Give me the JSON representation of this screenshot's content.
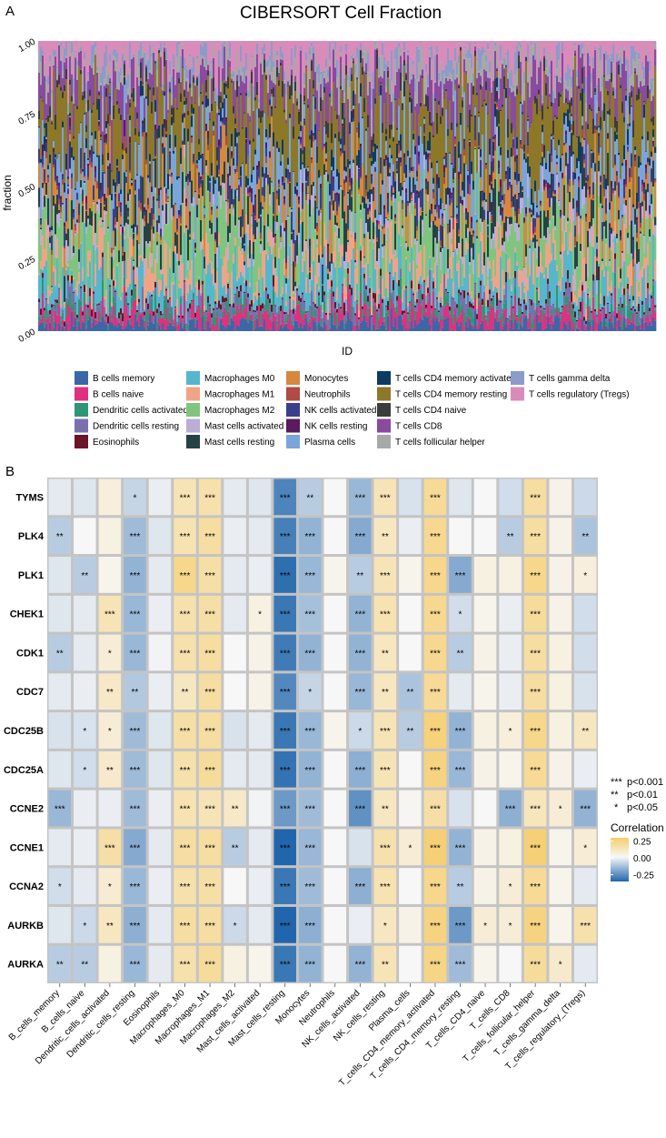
{
  "panel_labels": {
    "a": "A",
    "b": "B"
  },
  "stacked_note": "Stacked bar chart of immune cell fractions per sample; individual sample values are not legible in the image, so the displayed bars are an approximation of the overall composition.",
  "legend_columns": 5,
  "heatmap_legend": {
    "significance": [
      {
        "stars": "***",
        "label": "p<0.001"
      },
      {
        "stars": "**",
        "label": "p<0.01"
      },
      {
        "stars": "*",
        "label": "p<0.05"
      }
    ],
    "color_title": "Correlation",
    "ticks": [
      0.25,
      0.0,
      -0.25
    ],
    "tick_labels": [
      "0.25",
      "0.00",
      "-0.25"
    ],
    "low_color": "#2166ac",
    "mid_color": "#f7f7f7",
    "high_color": "#f6cd6b"
  },
  "chart_data": [
    {
      "type": "bar",
      "stacked": true,
      "title": "CIBERSORT Cell Fraction",
      "xlabel": "ID",
      "ylabel": "fraction",
      "ylim": [
        0,
        1
      ],
      "y_ticks": [
        0.0,
        0.25,
        0.5,
        0.75,
        1.0
      ],
      "y_tick_labels": [
        "0.00",
        "0.25",
        "0.50",
        "0.75",
        "1.00"
      ],
      "series": [
        {
          "name": "B cells memory",
          "color": "#3b67a8",
          "approx_mean_fraction": 0.02
        },
        {
          "name": "B cells naive",
          "color": "#e0307f",
          "approx_mean_fraction": 0.03
        },
        {
          "name": "Dendritic cells activated",
          "color": "#2e9676",
          "approx_mean_fraction": 0.02
        },
        {
          "name": "Dendritic cells resting",
          "color": "#7a70b0",
          "approx_mean_fraction": 0.02
        },
        {
          "name": "Eosinophils",
          "color": "#6b1528",
          "approx_mean_fraction": 0.01
        },
        {
          "name": "Macrophages M0",
          "color": "#56b7cc",
          "approx_mean_fraction": 0.07
        },
        {
          "name": "Macrophages M1",
          "color": "#f0a387",
          "approx_mean_fraction": 0.05
        },
        {
          "name": "Macrophages M2",
          "color": "#80c57f",
          "approx_mean_fraction": 0.1
        },
        {
          "name": "Mast cells activated",
          "color": "#bcadd5",
          "approx_mean_fraction": 0.03
        },
        {
          "name": "Mast cells resting",
          "color": "#254345",
          "approx_mean_fraction": 0.04
        },
        {
          "name": "Monocytes",
          "color": "#d4893f",
          "approx_mean_fraction": 0.06
        },
        {
          "name": "Neutrophils",
          "color": "#b24a45",
          "approx_mean_fraction": 0.01
        },
        {
          "name": "NK cells activated",
          "color": "#3a3e8b",
          "approx_mean_fraction": 0.03
        },
        {
          "name": "NK cells resting",
          "color": "#5a1a5e",
          "approx_mean_fraction": 0.01
        },
        {
          "name": "Plasma cells",
          "color": "#7aa5d8",
          "approx_mean_fraction": 0.08
        },
        {
          "name": "T cells CD4 memory activated",
          "color": "#0d3b62",
          "approx_mean_fraction": 0.02
        },
        {
          "name": "T cells CD4 memory resting",
          "color": "#8d7828",
          "approx_mean_fraction": 0.14
        },
        {
          "name": "T cells CD4 naive",
          "color": "#3c3c3c",
          "approx_mean_fraction": 0.02
        },
        {
          "name": "T cells CD8",
          "color": "#8a4aa0",
          "approx_mean_fraction": 0.07
        },
        {
          "name": "T cells follicular helper",
          "color": "#a8a8a8",
          "approx_mean_fraction": 0.04
        },
        {
          "name": "T cells gamma delta",
          "color": "#8b9cc8",
          "approx_mean_fraction": 0.03
        },
        {
          "name": "T cells regulatory (Tregs)",
          "color": "#d98bba",
          "approx_mean_fraction": 0.06
        }
      ]
    },
    {
      "type": "heatmap",
      "title": "",
      "xlabel": "",
      "ylabel": "",
      "value_range": [
        -0.35,
        0.3
      ],
      "rows": [
        "TYMS",
        "PLK4",
        "PLK1",
        "CHEK1",
        "CDK1",
        "CDC7",
        "CDC25B",
        "CDC25A",
        "CCNE2",
        "CCNE1",
        "CCNA2",
        "AURKB",
        "AURKA"
      ],
      "columns": [
        "B_cells_memory",
        "B_cells_naive",
        "Dendritic_cells_activated",
        "Dendritic_cells_resting",
        "Eosinophils",
        "Macrophages_M0",
        "Macrophages_M1",
        "Macrophages_M2",
        "Mast_cells_activated",
        "Mast_cells_resting",
        "Monocytes",
        "Neutrophils",
        "NK_cells_activated",
        "NK_cells_resting",
        "Plasma_cells",
        "T_cells_CD4_memory_activated",
        "T_cells_CD4_memory_resting",
        "T_cells_CD4_naive",
        "T_cells_CD8",
        "T_cells_follicular_helper",
        "T_cells_gamma_delta",
        "T_cells_regulatory_(Tregs)"
      ],
      "values": [
        [
          -0.03,
          -0.04,
          0.05,
          -0.08,
          -0.02,
          0.12,
          0.14,
          -0.03,
          -0.04,
          -0.27,
          -0.1,
          0.0,
          -0.15,
          0.12,
          -0.05,
          0.18,
          -0.04,
          0.0,
          -0.06,
          0.16,
          0.03,
          -0.07
        ],
        [
          -0.1,
          0.0,
          0.04,
          -0.14,
          -0.04,
          0.13,
          0.16,
          -0.02,
          -0.03,
          -0.28,
          -0.16,
          0.0,
          -0.18,
          0.1,
          -0.02,
          0.19,
          0.0,
          0.0,
          -0.1,
          0.16,
          0.03,
          -0.12
        ],
        [
          -0.04,
          -0.1,
          0.02,
          -0.16,
          -0.03,
          0.2,
          0.15,
          -0.03,
          -0.02,
          -0.32,
          -0.15,
          0.02,
          -0.1,
          0.12,
          0.02,
          0.2,
          -0.18,
          0.04,
          0.04,
          0.2,
          0.03,
          0.05
        ],
        [
          -0.04,
          -0.03,
          0.12,
          -0.15,
          -0.02,
          0.14,
          0.15,
          -0.03,
          0.04,
          -0.3,
          -0.13,
          0.0,
          -0.16,
          0.13,
          0.0,
          0.19,
          -0.06,
          0.02,
          -0.02,
          0.17,
          0.03,
          -0.06
        ],
        [
          -0.1,
          -0.03,
          0.06,
          -0.15,
          -0.01,
          0.14,
          0.16,
          0.0,
          0.03,
          -0.29,
          -0.16,
          0.0,
          -0.16,
          0.1,
          0.0,
          0.19,
          -0.1,
          0.03,
          -0.02,
          0.16,
          0.04,
          -0.06
        ],
        [
          -0.03,
          -0.02,
          0.09,
          -0.11,
          -0.02,
          0.1,
          0.16,
          0.0,
          0.03,
          -0.26,
          -0.08,
          0.0,
          -0.15,
          0.1,
          -0.12,
          0.18,
          -0.03,
          0.02,
          -0.02,
          0.16,
          0.04,
          -0.05
        ],
        [
          -0.05,
          -0.05,
          0.06,
          -0.14,
          -0.04,
          0.15,
          0.16,
          -0.05,
          -0.03,
          -0.3,
          -0.15,
          0.02,
          -0.07,
          0.12,
          -0.1,
          0.23,
          -0.16,
          0.04,
          0.05,
          0.2,
          0.04,
          0.1
        ],
        [
          -0.04,
          -0.06,
          0.08,
          -0.14,
          -0.04,
          0.14,
          0.17,
          -0.03,
          -0.03,
          -0.31,
          -0.16,
          0.0,
          -0.17,
          0.12,
          0.0,
          0.22,
          -0.15,
          0.03,
          0.02,
          0.18,
          0.03,
          -0.02
        ],
        [
          -0.15,
          -0.02,
          -0.02,
          -0.14,
          -0.02,
          0.13,
          0.12,
          0.09,
          -0.01,
          -0.22,
          -0.14,
          0.0,
          -0.24,
          0.1,
          0.01,
          0.15,
          -0.05,
          0.0,
          -0.17,
          0.11,
          0.06,
          -0.16
        ],
        [
          -0.03,
          -0.02,
          0.15,
          -0.18,
          -0.03,
          0.16,
          0.16,
          -0.1,
          -0.03,
          -0.38,
          -0.15,
          0.0,
          -0.05,
          0.14,
          0.06,
          0.24,
          -0.16,
          0.03,
          0.04,
          0.24,
          0.02,
          0.06
        ],
        [
          -0.06,
          -0.03,
          0.07,
          -0.15,
          -0.02,
          0.14,
          0.15,
          0.0,
          -0.02,
          -0.3,
          -0.14,
          0.0,
          -0.17,
          0.13,
          0.0,
          0.2,
          -0.1,
          0.03,
          0.06,
          0.18,
          0.02,
          -0.03
        ],
        [
          -0.04,
          -0.07,
          0.1,
          -0.17,
          -0.03,
          0.16,
          0.16,
          -0.07,
          -0.03,
          -0.36,
          -0.17,
          0.0,
          -0.02,
          0.1,
          0.03,
          0.22,
          -0.22,
          0.06,
          0.06,
          0.22,
          0.02,
          0.14
        ],
        [
          -0.1,
          -0.1,
          0.04,
          -0.15,
          -0.03,
          0.14,
          0.17,
          0.04,
          0.02,
          -0.3,
          -0.16,
          0.0,
          -0.16,
          0.12,
          0.0,
          0.21,
          -0.14,
          0.02,
          0.0,
          0.17,
          0.08,
          -0.03
        ]
      ],
      "significance": [
        [
          "",
          "",
          "",
          "*",
          "",
          "***",
          "***",
          "",
          "",
          "***",
          "**",
          "",
          "***",
          "***",
          "",
          "***",
          "",
          "",
          "",
          "***",
          "",
          ""
        ],
        [
          "**",
          "",
          "",
          "***",
          "",
          "***",
          "***",
          "",
          "",
          "***",
          "***",
          "",
          "***",
          "**",
          "",
          "***",
          "",
          "",
          "**",
          "***",
          "",
          "**"
        ],
        [
          "",
          "**",
          "",
          "***",
          "",
          "***",
          "***",
          "",
          "",
          "***",
          "***",
          "",
          "**",
          "***",
          "",
          "***",
          "***",
          "",
          "",
          "***",
          "",
          "*"
        ],
        [
          "",
          "",
          "***",
          "***",
          "",
          "***",
          "***",
          "",
          "*",
          "***",
          "***",
          "",
          "***",
          "***",
          "",
          "***",
          "*",
          "",
          "",
          "***",
          "",
          ""
        ],
        [
          "**",
          "",
          "*",
          "***",
          "",
          "***",
          "***",
          "",
          "",
          "***",
          "***",
          "",
          "***",
          "**",
          "",
          "***",
          "**",
          "",
          "",
          "***",
          "",
          ""
        ],
        [
          "",
          "",
          "**",
          "**",
          "",
          "**",
          "***",
          "",
          "",
          "***",
          "*",
          "",
          "***",
          "**",
          "**",
          "***",
          "",
          "",
          "",
          "***",
          "",
          ""
        ],
        [
          "",
          "*",
          "*",
          "***",
          "",
          "***",
          "***",
          "",
          "",
          "***",
          "***",
          "",
          "*",
          "***",
          "**",
          "***",
          "***",
          "",
          "*",
          "***",
          "",
          "**"
        ],
        [
          "",
          "*",
          "**",
          "***",
          "",
          "***",
          "***",
          "",
          "",
          "***",
          "***",
          "",
          "***",
          "***",
          "",
          "***",
          "***",
          "",
          "",
          "***",
          "",
          ""
        ],
        [
          "***",
          "",
          "",
          "***",
          "",
          "***",
          "***",
          "**",
          "",
          "***",
          "***",
          "",
          "***",
          "**",
          "",
          "***",
          "",
          "",
          "***",
          "***",
          "*",
          "***"
        ],
        [
          "",
          "",
          "***",
          "***",
          "",
          "***",
          "***",
          "**",
          "",
          "***",
          "***",
          "",
          "",
          "***",
          "*",
          "***",
          "***",
          "",
          "",
          "***",
          "",
          "*"
        ],
        [
          "*",
          "",
          "*",
          "***",
          "",
          "***",
          "***",
          "",
          "",
          "***",
          "***",
          "",
          "***",
          "***",
          "",
          "***",
          "**",
          "",
          "*",
          "***",
          "",
          ""
        ],
        [
          "",
          "*",
          "**",
          "***",
          "",
          "***",
          "***",
          "*",
          "",
          "***",
          "***",
          "",
          "",
          "*",
          "",
          "***",
          "***",
          "*",
          "*",
          "***",
          "",
          "***"
        ],
        [
          "**",
          "**",
          "",
          "***",
          "",
          "***",
          "***",
          "",
          "",
          "***",
          "***",
          "",
          "***",
          "**",
          "",
          "***",
          "***",
          "",
          "",
          "***",
          "*",
          ""
        ]
      ]
    }
  ]
}
